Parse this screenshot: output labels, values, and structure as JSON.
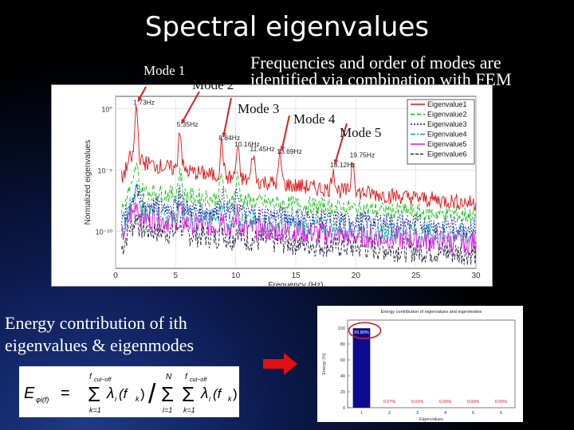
{
  "slide": {
    "title": "Spectral eigenvalues",
    "note_line1": "Frequencies and order of modes are",
    "note_line2": "identified via combination with FEM",
    "energy_line1": "Energy contribution of ith",
    "energy_line2": "eigenvalues & eigenmodes"
  },
  "modes": [
    {
      "label": "Mode 1"
    },
    {
      "label": "Mode 2"
    },
    {
      "label": "Mode 3"
    },
    {
      "label": "Mode 4"
    },
    {
      "label": "Mode 5"
    }
  ],
  "chart_data": [
    {
      "type": "line",
      "xlabel": "Frequency (Hz)",
      "ylabel": "Normalized eigenvalues",
      "xlim": [
        0,
        30
      ],
      "x_ticks": [
        "0",
        "5",
        "10",
        "15",
        "20",
        "25",
        "30"
      ],
      "y_ticks": [
        "10°",
        "10⁻⁵",
        "10⁻¹⁰"
      ],
      "ylim_log10": [
        -13,
        1
      ],
      "grid": true,
      "legend": "top-right",
      "series": [
        {
          "name": "Eigenvalue1",
          "color": "#e01010",
          "dash": "",
          "base": -3.6,
          "end": -7.7
        },
        {
          "name": "Eigenvalue2",
          "color": "#10c010",
          "dash": "5,3",
          "base": -6.2,
          "end": -8.7
        },
        {
          "name": "Eigenvalue3",
          "color": "#1010a0",
          "dash": "2,2",
          "base": -7.3,
          "end": -9.6
        },
        {
          "name": "Eigenvalue4",
          "color": "#10a0a0",
          "dash": "6,2,2,2",
          "base": -7.8,
          "end": -10.3
        },
        {
          "name": "Eigenvalue5",
          "color": "#e010e0",
          "dash": "",
          "base": -8.4,
          "end": -10.9
        },
        {
          "name": "Eigenvalue6",
          "color": "#202040",
          "dash": "4,2",
          "base": -9.3,
          "end": -11.8
        }
      ],
      "peaks": [
        {
          "label": "1.73Hz",
          "freq": 1.73,
          "log_value": 0.2
        },
        {
          "label": "5.35Hz",
          "freq": 5.35,
          "log_value": -1.6
        },
        {
          "label": "8.84Hz",
          "freq": 8.84,
          "log_value": -2.7
        },
        {
          "label": "10.16Hz",
          "freq": 10.16,
          "log_value": -3.2
        },
        {
          "label": "11.45Hz",
          "freq": 11.45,
          "log_value": -3.6
        },
        {
          "label": "13.69Hz",
          "freq": 13.69,
          "log_value": -3.8
        },
        {
          "label": "18.12Hz",
          "freq": 18.12,
          "log_value": -4.9
        },
        {
          "label": "19.75Hz",
          "freq": 19.75,
          "log_value": -4.1
        }
      ]
    },
    {
      "type": "bar",
      "title": "Energy contribution of eigenvalues and eigenmodes",
      "xlabel": "Eigenvalues",
      "ylabel": "Energy (%)",
      "categories": [
        "1",
        "2",
        "3",
        "4",
        "5",
        "6"
      ],
      "values": [
        99.8,
        0.07,
        0.01,
        0.0,
        0.0,
        0.0
      ],
      "value_labels": [
        "99.80%",
        "0.07%",
        "0.01%",
        "0.00%",
        "0.00%",
        "0.00%"
      ],
      "y_ticks": [
        "100",
        "80",
        "60",
        "40",
        "20",
        "0"
      ],
      "ylim": [
        0,
        110
      ],
      "bar_color": "#0b0b90",
      "highlight_color": "#d42020"
    }
  ],
  "formula": {
    "lhs": "E",
    "lhs_sub": "φi(f)",
    "equals": "=",
    "num_sum1_top": "f",
    "num_sum1_top_sub": "cut−off",
    "num_sum1_bottom": "k=1",
    "num_term": "λ",
    "num_term_sub": "i",
    "num_term_arg": "(f",
    "num_term_arg_sub": "k",
    "num_term_arg_close": ")",
    "slash": "/",
    "den_sum1_top": "N",
    "den_sum1_bottom": "i=1",
    "den_sum2_top": "f",
    "den_sum2_top_sub": "cut−off",
    "den_sum2_bottom": "k=1",
    "den_term": "λ",
    "den_term_sub": "i",
    "den_term_arg": "(f",
    "den_term_arg_sub": "k",
    "den_term_arg_close": ")",
    "sigma": "Σ"
  },
  "arrow": {
    "color": "#e01010",
    "icon": "right-arrow-icon"
  }
}
